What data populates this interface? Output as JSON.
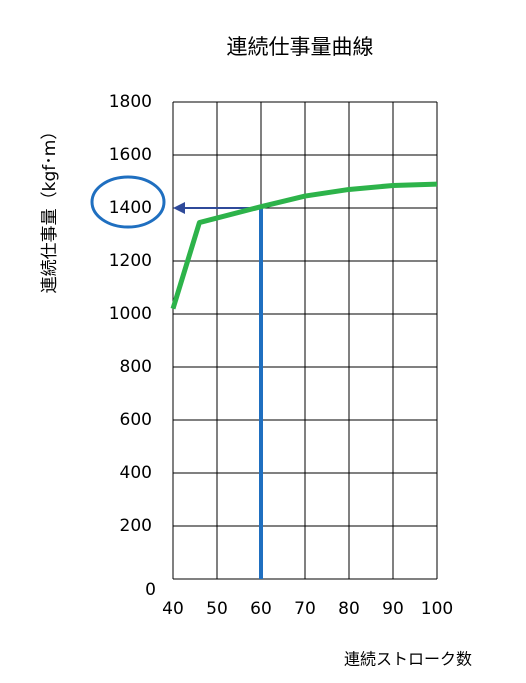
{
  "chart_data": {
    "type": "line",
    "title": "連続仕事量曲線",
    "y_label": "連続仕事量（kgf･m）",
    "x_label": "連続ストローク数",
    "x": [
      40,
      46,
      60,
      70,
      80,
      90,
      100
    ],
    "values": [
      1020,
      1345,
      1405,
      1445,
      1470,
      1485,
      1490
    ],
    "color": "#2db34a",
    "xlim": [
      40,
      100
    ],
    "xticks": [
      40,
      50,
      60,
      70,
      80,
      90,
      100
    ],
    "ylim": [
      0,
      1800
    ],
    "yticks": [
      0,
      200,
      400,
      600,
      800,
      1000,
      1200,
      1400,
      1600,
      1800
    ],
    "grid": true,
    "annotation": {
      "x": 60,
      "y": 1400,
      "line_color": "#1f6fc0",
      "arrow_color": "#2f4a9a"
    }
  }
}
